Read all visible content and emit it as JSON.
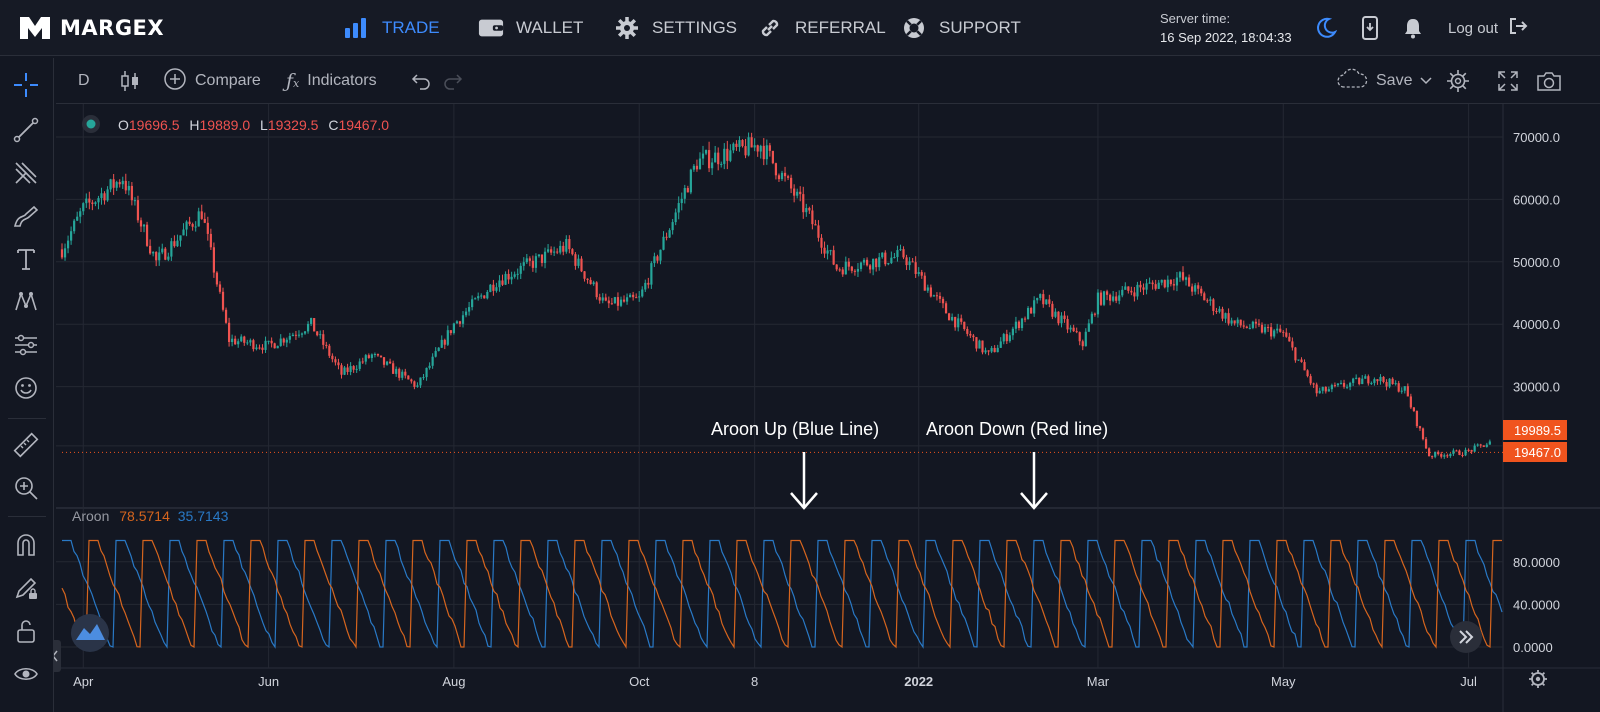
{
  "brand": {
    "name": "MARGEX"
  },
  "nav": {
    "trade": "TRADE",
    "wallet": "WALLET",
    "settings": "SETTINGS",
    "referral": "REFERRAL",
    "support": "SUPPORT",
    "active": "trade"
  },
  "server_time": {
    "label": "Server time:",
    "value": "16 Sep 2022, 18:04:33"
  },
  "logout_label": "Log out",
  "chart_toolbar": {
    "interval": "D",
    "compare": "Compare",
    "indicators": "Indicators",
    "save": "Save"
  },
  "ohlc": {
    "o_label": "O",
    "o": "19696.5",
    "h_label": "H",
    "h": "19889.0",
    "l_label": "L",
    "l": "19329.5",
    "c_label": "C",
    "c": "19467.0"
  },
  "aroon_legend": {
    "name": "Aroon",
    "down_value": "78.5714",
    "up_value": "35.7143"
  },
  "annotations": {
    "up": "Aroon Up (Blue Line)",
    "down": "Aroon Down (Red line)"
  },
  "colors": {
    "up_candle": "#26a69a",
    "down_candle": "#ef5350",
    "aroon_up": "#2979c6",
    "aroon_down": "#d6651e",
    "accent": "#3d8bfd",
    "price_tag": "#f0541e"
  },
  "chart_data": [
    {
      "type": "candlestick",
      "title": "",
      "x": [
        "Apr",
        "Jun",
        "Aug",
        "Oct",
        "8",
        "2022",
        "Mar",
        "May",
        "Jul"
      ],
      "xlabel": "",
      "ylabel": "",
      "y_ticks": [
        "70000.0",
        "60000.0",
        "50000.0",
        "40000.0",
        "30000.0"
      ],
      "ylim": [
        17000,
        72000
      ],
      "price_labels": [
        "19989.5",
        "19467.0"
      ],
      "price_levels": [
        19989.5,
        19467.0
      ],
      "approx_close_path": [
        [
          "2021-03-25",
          52000
        ],
        [
          "2021-04-01",
          58500
        ],
        [
          "2021-04-14",
          63500
        ],
        [
          "2021-04-25",
          50000
        ],
        [
          "2021-05-10",
          58000
        ],
        [
          "2021-05-19",
          37500
        ],
        [
          "2021-06-01",
          36500
        ],
        [
          "2021-06-15",
          40000
        ],
        [
          "2021-06-25",
          32000
        ],
        [
          "2021-07-05",
          35000
        ],
        [
          "2021-07-20",
          30000
        ],
        [
          "2021-08-01",
          40000
        ],
        [
          "2021-08-15",
          47000
        ],
        [
          "2021-09-07",
          52500
        ],
        [
          "2021-09-20",
          43000
        ],
        [
          "2021-10-01",
          44000
        ],
        [
          "2021-10-20",
          66000
        ],
        [
          "2021-11-10",
          68800
        ],
        [
          "2021-11-25",
          58000
        ],
        [
          "2021-12-05",
          49000
        ],
        [
          "2021-12-27",
          51000
        ],
        [
          "2022-01-10",
          42000
        ],
        [
          "2022-01-24",
          35000
        ],
        [
          "2022-02-10",
          44000
        ],
        [
          "2022-02-24",
          37000
        ],
        [
          "2022-03-01",
          44000
        ],
        [
          "2022-03-28",
          47500
        ],
        [
          "2022-04-15",
          40000
        ],
        [
          "2022-05-01",
          38500
        ],
        [
          "2022-05-12",
          29000
        ],
        [
          "2022-05-31",
          31500
        ],
        [
          "2022-06-10",
          29500
        ],
        [
          "2022-06-18",
          19000
        ],
        [
          "2022-06-30",
          19500
        ],
        [
          "2022-07-08",
          21000
        ]
      ]
    },
    {
      "type": "line",
      "title": "Aroon",
      "y_ticks": [
        "80.0000",
        "40.0000",
        "0.0000"
      ],
      "ylim": [
        -5,
        105
      ],
      "series": [
        {
          "name": "Aroon Up",
          "color": "#2979c6",
          "last_value": 35.7143
        },
        {
          "name": "Aroon Down",
          "color": "#d6651e",
          "last_value": 78.5714
        }
      ]
    }
  ]
}
